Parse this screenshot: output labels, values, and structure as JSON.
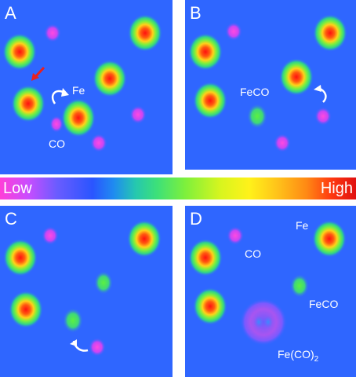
{
  "panels": [
    {
      "letter": "A",
      "labels": {
        "fe": "Fe",
        "co": "CO"
      }
    },
    {
      "letter": "B",
      "labels": {
        "feco": "FeCO"
      }
    },
    {
      "letter": "C",
      "labels": {}
    },
    {
      "letter": "D",
      "labels": {
        "fe": "Fe",
        "co": "CO",
        "feco": "FeCO",
        "feco2_base": "Fe(CO)",
        "feco2_sub": "2"
      }
    }
  ],
  "colorbar": {
    "low": "Low",
    "high": "High"
  },
  "colors": {
    "background": "#2f66ff",
    "arrow": "#ffffff",
    "red_arrow": "#e82020"
  }
}
